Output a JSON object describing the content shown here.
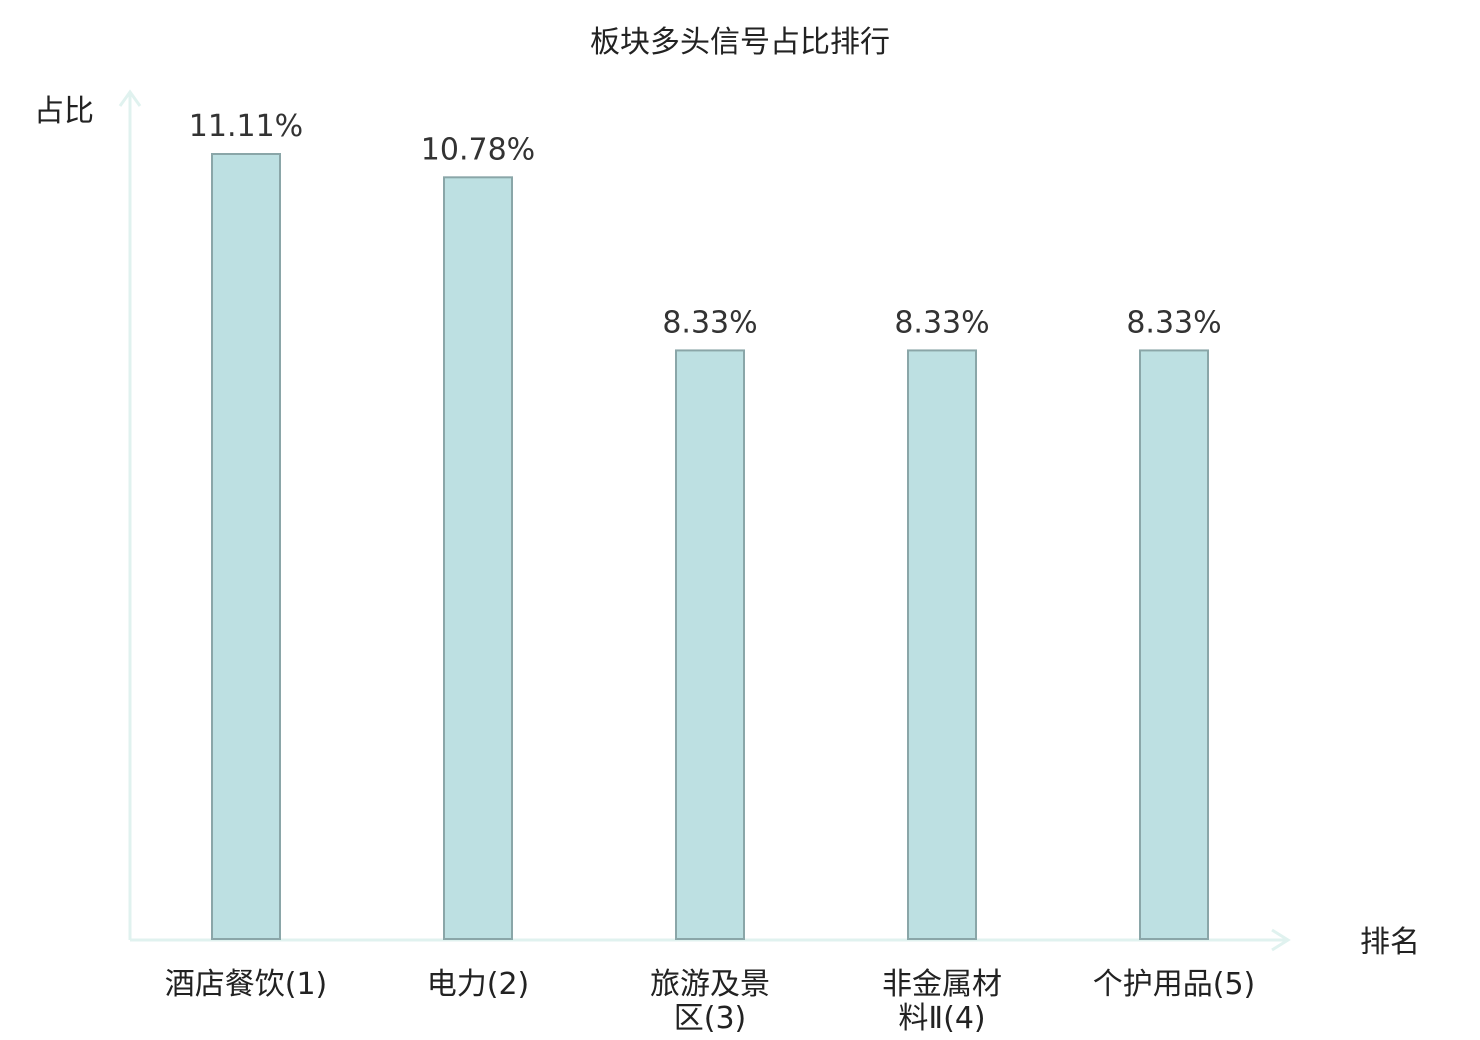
{
  "chart_data": {
    "type": "bar",
    "title": "板块多头信号占比排行",
    "ylabel": "占比",
    "xlabel": "排名",
    "categories": [
      [
        "酒店餐饮(1)"
      ],
      [
        "电力(2)"
      ],
      [
        "旅游及景",
        "区(3)"
      ],
      [
        "非金属材",
        "料Ⅱ(4)"
      ],
      [
        "个护用品(5)"
      ]
    ],
    "values": [
      11.11,
      10.78,
      8.33,
      8.33,
      8.33
    ],
    "value_labels": [
      "11.11%",
      "10.78%",
      "8.33%",
      "8.33%",
      "8.33%"
    ],
    "highlight_index": 4,
    "ylim": [
      0,
      11.11
    ],
    "grid": false,
    "colors": {
      "bar_fill": "#bde0e2",
      "bar_stroke": "#8aa6a8",
      "axis": "#e0f2ef",
      "highlight_label": "#e00000",
      "text": "#222222"
    }
  }
}
